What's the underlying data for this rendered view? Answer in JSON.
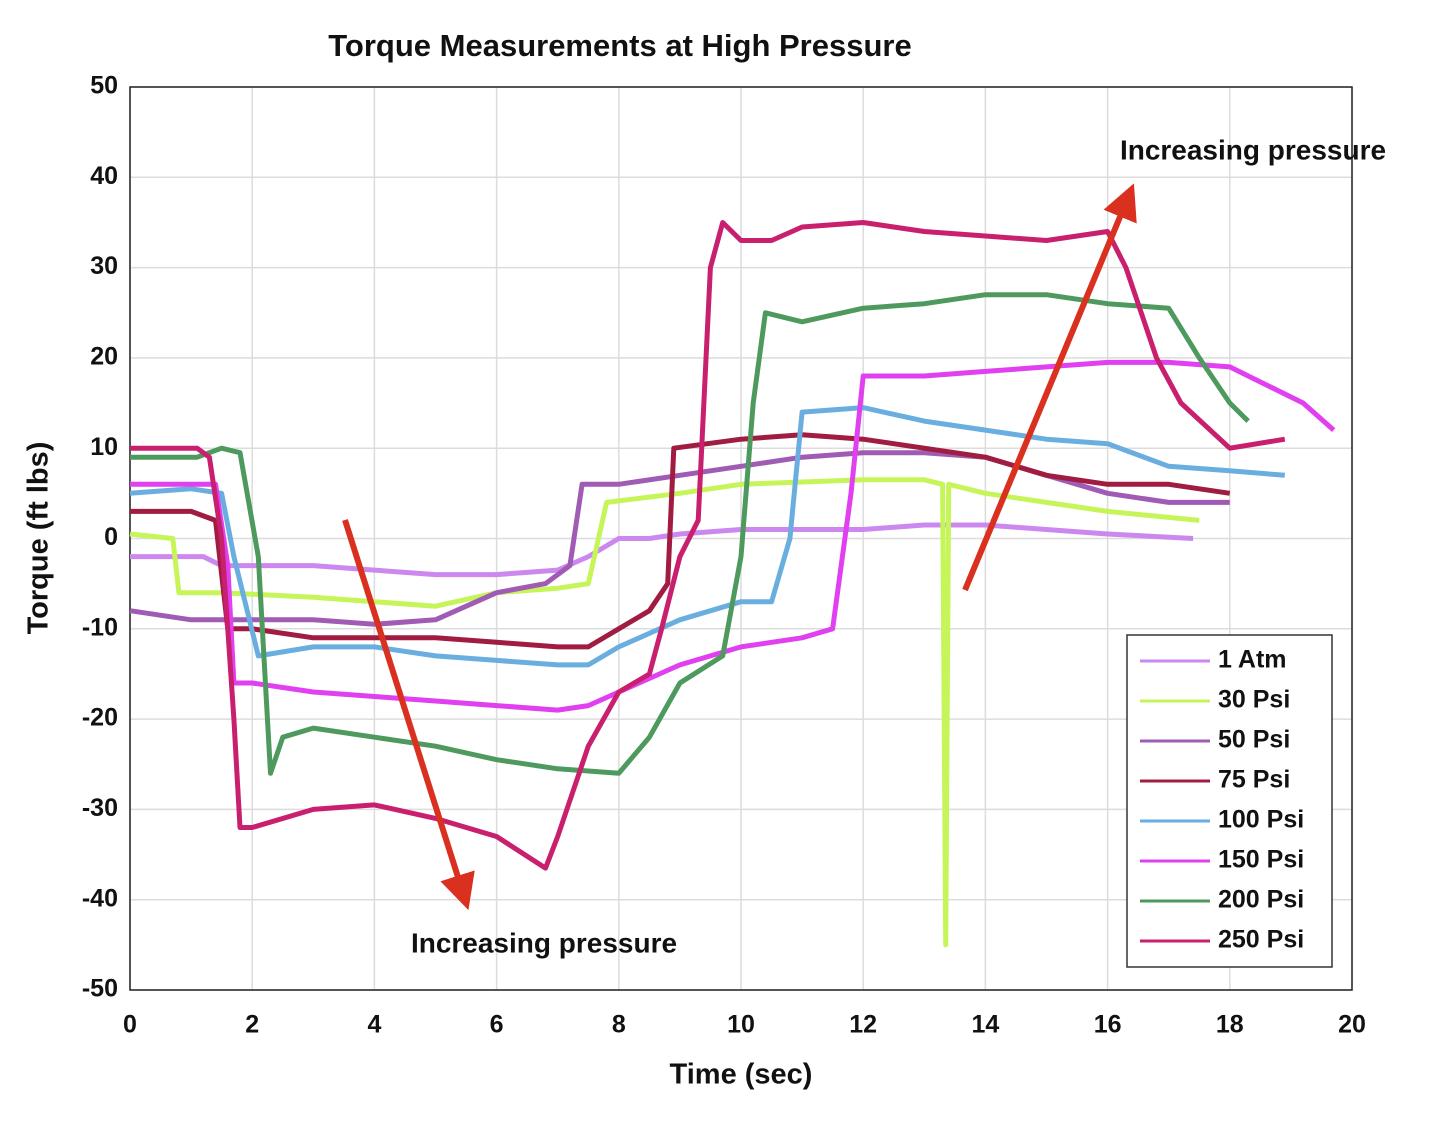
{
  "chart_data": {
    "type": "line",
    "title": "Torque Measurements at High Pressure",
    "x_label": "Time (sec)",
    "y_label": "Torque (ft lbs)",
    "annotations": [
      "Increasing pressure",
      "Increasing pressure"
    ],
    "xlim": [
      0,
      20
    ],
    "xticks": [
      0,
      2,
      4,
      6,
      8,
      10,
      12,
      14,
      16,
      18,
      20
    ],
    "ylim": [
      -50,
      50
    ],
    "yticks": [
      -50,
      -40,
      -30,
      -20,
      -10,
      0,
      10,
      20,
      30,
      40,
      50
    ],
    "grid": true,
    "legend": "lower right",
    "series": [
      {
        "name": "1 Atm",
        "color": "#cc88ee",
        "x": [
          0,
          1.2,
          1.5,
          2,
          3,
          4,
          5,
          6,
          7,
          7.5,
          8,
          8.5,
          9,
          10,
          12,
          13,
          14,
          15,
          16,
          17.4
        ],
        "values": [
          -2,
          -2,
          -3,
          -3,
          -3,
          -3.5,
          -4,
          -4,
          -3.5,
          -2,
          0,
          0,
          0.5,
          1,
          1,
          1.5,
          1.5,
          1,
          0.5,
          0
        ]
      },
      {
        "name": "30 Psi",
        "color": "#c6f55a",
        "x": [
          0,
          0.7,
          0.8,
          1.5,
          3,
          4,
          5,
          6,
          7,
          7.5,
          7.8,
          9,
          10,
          12,
          13,
          13.3,
          13.35,
          13.4,
          14,
          15,
          16,
          17.5
        ],
        "values": [
          0.5,
          0,
          -6,
          -6,
          -6.5,
          -7,
          -7.5,
          -6,
          -5.5,
          -5,
          4,
          5,
          6,
          6.5,
          6.5,
          6,
          -45,
          6,
          5,
          4,
          3,
          2
        ]
      },
      {
        "name": "50 Psi",
        "color": "#a05cb4",
        "x": [
          0,
          1,
          2,
          3,
          4,
          5,
          6,
          6.8,
          7.2,
          7.4,
          8,
          9,
          10,
          11,
          12,
          13,
          14,
          15,
          16,
          17,
          18
        ],
        "values": [
          -8,
          -9,
          -9,
          -9,
          -9.5,
          -9,
          -6,
          -5,
          -3,
          6,
          6,
          7,
          8,
          9,
          9.5,
          9.5,
          9,
          7,
          5,
          4,
          4
        ]
      },
      {
        "name": "75 Psi",
        "color": "#a01c40",
        "x": [
          0,
          1,
          1.4,
          1.6,
          2,
          3,
          4,
          5,
          6,
          7,
          7.5,
          8,
          8.5,
          8.8,
          8.9,
          10,
          11,
          12,
          13,
          14,
          15,
          16,
          17,
          18
        ],
        "values": [
          3,
          3,
          2,
          -10,
          -10,
          -11,
          -11,
          -11,
          -11.5,
          -12,
          -12,
          -10,
          -8,
          -5,
          10,
          11,
          11.5,
          11,
          10,
          9,
          7,
          6,
          6,
          5
        ]
      },
      {
        "name": "100 Psi",
        "color": "#6aaee0",
        "x": [
          0,
          1,
          1.5,
          1.7,
          2.1,
          3,
          4,
          5,
          6,
          7,
          7.5,
          8,
          9,
          10,
          10.5,
          10.8,
          11,
          12,
          13,
          14,
          15,
          16,
          17,
          18,
          18.9
        ],
        "values": [
          5,
          5.5,
          5,
          -2,
          -13,
          -12,
          -12,
          -13,
          -13.5,
          -14,
          -14,
          -12,
          -9,
          -7,
          -7,
          0,
          14,
          14.5,
          13,
          12,
          11,
          10.5,
          8,
          7.5,
          7
        ]
      },
      {
        "name": "150 Psi",
        "color": "#e040f0",
        "x": [
          0,
          1.4,
          1.6,
          1.7,
          2,
          3,
          4,
          5,
          6,
          7,
          7.5,
          8,
          9,
          10,
          11,
          11.5,
          11.8,
          12,
          13,
          14,
          15,
          16,
          17,
          18,
          18.6,
          19.2,
          19.7
        ],
        "values": [
          6,
          6,
          -3,
          -16,
          -16,
          -17,
          -17.5,
          -18,
          -18.5,
          -19,
          -18.5,
          -17,
          -14,
          -12,
          -11,
          -10,
          5,
          18,
          18,
          18.5,
          19,
          19.5,
          19.5,
          19,
          17,
          15,
          12
        ]
      },
      {
        "name": "200 Psi",
        "color": "#4e9a5e",
        "x": [
          0,
          1.1,
          1.5,
          1.8,
          2.1,
          2.3,
          2.5,
          3,
          4,
          5,
          6,
          7,
          8,
          8.5,
          9,
          9.7,
          10,
          10.2,
          10.4,
          11,
          12,
          13,
          14,
          15,
          16,
          17,
          17.5,
          18,
          18.3
        ],
        "values": [
          9,
          9,
          10,
          9.5,
          -2,
          -26,
          -22,
          -21,
          -22,
          -23,
          -24.5,
          -25.5,
          -26,
          -22,
          -16,
          -13,
          -2,
          15,
          25,
          24,
          25.5,
          26,
          27,
          27,
          26,
          25.5,
          20,
          15,
          13
        ]
      },
      {
        "name": "250 Psi",
        "color": "#c8206e",
        "x": [
          0,
          1.1,
          1.3,
          1.5,
          1.7,
          1.8,
          2,
          3,
          4,
          5,
          6,
          6.8,
          7,
          7.5,
          8,
          8.5,
          8.7,
          9,
          9.3,
          9.5,
          9.7,
          10,
          10.5,
          11,
          12,
          13,
          14,
          15,
          16,
          16.3,
          16.8,
          17.2,
          18,
          18.9
        ],
        "values": [
          10,
          10,
          9,
          0,
          -20,
          -32,
          -32,
          -30,
          -29.5,
          -31,
          -33,
          -36.5,
          -33,
          -23,
          -17,
          -15,
          -10,
          -2,
          2,
          30,
          35,
          33,
          33,
          34.5,
          35,
          34,
          33.5,
          33,
          34,
          30,
          20,
          15,
          10,
          11
        ]
      }
    ]
  }
}
